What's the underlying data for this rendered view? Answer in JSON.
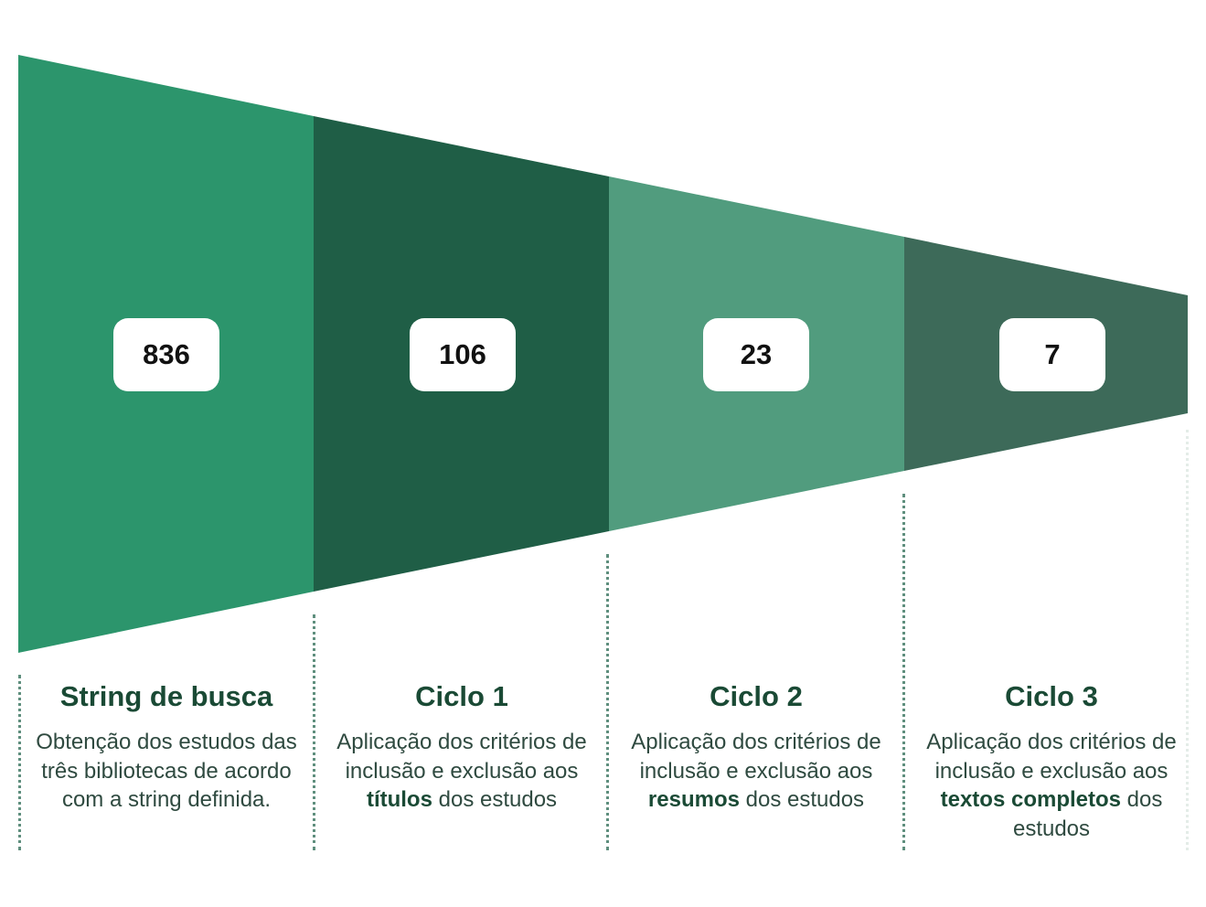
{
  "stages": [
    {
      "count": "836",
      "title": "String de busca",
      "desc_before": "Obtenção dos estudos das três bibliotecas de acordo com a string definida.",
      "desc_bold": "",
      "desc_after": "",
      "color": "#2c956c"
    },
    {
      "count": "106",
      "title": "Ciclo 1",
      "desc_before": "Aplicação dos critérios de inclusão e exclusão aos ",
      "desc_bold": "títulos",
      "desc_after": " dos estudos",
      "color": "#1f5e46"
    },
    {
      "count": "23",
      "title": "Ciclo 2",
      "desc_before": "Aplicação dos critérios de inclusão e exclusão aos ",
      "desc_bold": "resumos",
      "desc_after": " dos estudos",
      "color": "#519c7e"
    },
    {
      "count": "7",
      "title": "Ciclo 3",
      "desc_before": "Aplicação dos critérios de inclusão e exclusão aos ",
      "desc_bold": "textos completos",
      "desc_after": " dos estudos",
      "color": "#3d6a59"
    }
  ]
}
